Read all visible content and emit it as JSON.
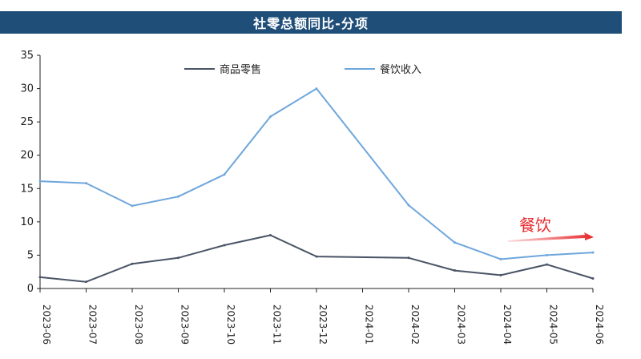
{
  "header": {
    "title": "社零总额同比-分项"
  },
  "colors": {
    "title_bg": "#1f4e79",
    "series_goods": "#4a5466",
    "series_catering": "#6ea6db",
    "annotation": "#e8282b",
    "axis": "#222222"
  },
  "chart_data": {
    "type": "line",
    "title": "社零总额同比-分项",
    "xlabel": "",
    "ylabel": "",
    "categories": [
      "2023-06",
      "2023-07",
      "2023-08",
      "2023-09",
      "2023-10",
      "2023-11",
      "2023-12",
      "2024-01",
      "2024-02",
      "2024-03",
      "2024-04",
      "2024-05",
      "2024-06"
    ],
    "ylim": [
      0,
      35
    ],
    "yticks": [
      0,
      5,
      10,
      15,
      20,
      25,
      30,
      35
    ],
    "grid": false,
    "legend_position": "top-center",
    "series": [
      {
        "name": "商品零售",
        "color": "#4a5466",
        "values": [
          1.7,
          1.0,
          3.7,
          4.6,
          6.5,
          8.0,
          4.8,
          null,
          4.6,
          2.7,
          2.0,
          3.6,
          1.5
        ]
      },
      {
        "name": "餐饮收入",
        "color": "#6ea6db",
        "values": [
          16.1,
          15.8,
          12.4,
          13.8,
          17.1,
          25.8,
          30.0,
          null,
          12.5,
          6.9,
          4.4,
          5.0,
          5.4
        ]
      }
    ],
    "annotations": [
      {
        "text": "餐饮"
      }
    ]
  }
}
